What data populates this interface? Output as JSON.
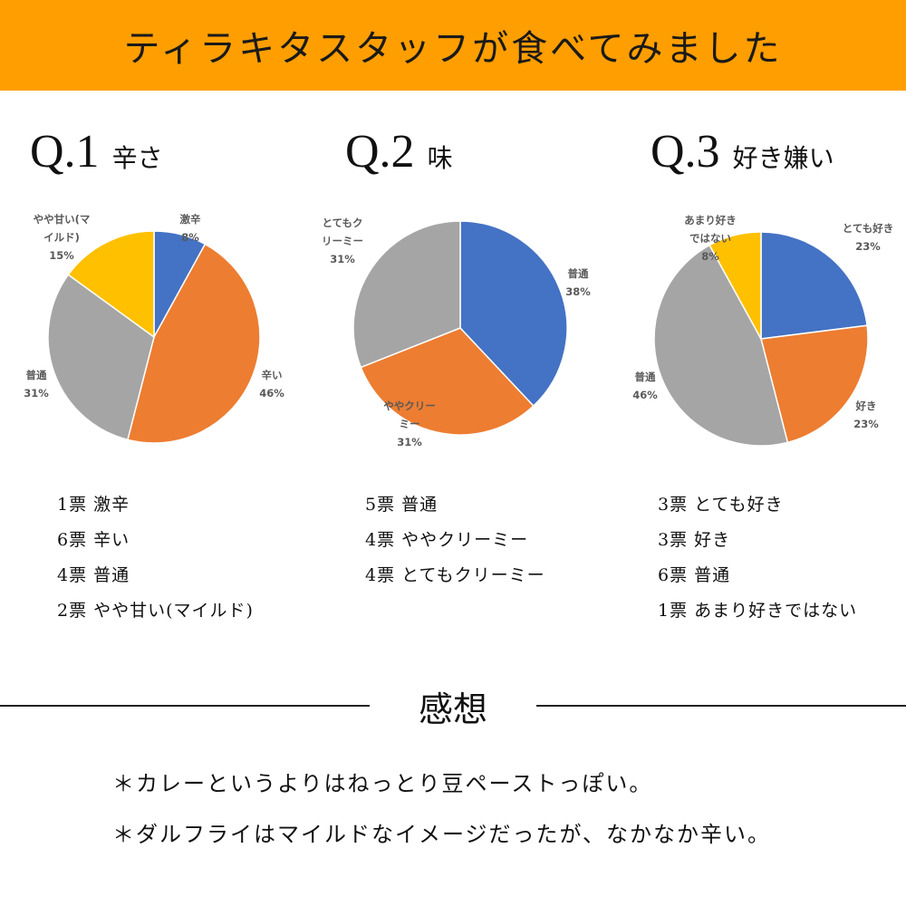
{
  "header": {
    "title": "ティラキタスタッフが食べてみました"
  },
  "questions": [
    {
      "number": "Q.1",
      "topic": "辛さ"
    },
    {
      "number": "Q.2",
      "topic": "味"
    },
    {
      "number": "Q.3",
      "topic": "好き嫌い"
    }
  ],
  "chart_data": [
    {
      "type": "pie",
      "categories": [
        "激辛",
        "辛い",
        "普通",
        "やや甘い(マイルド)"
      ],
      "values": [
        8,
        46,
        31,
        15
      ],
      "value_labels": [
        "8%",
        "46%",
        "31%",
        "15%"
      ],
      "label_lines": [
        [
          "激辛"
        ],
        [
          "辛い"
        ],
        [
          "普通"
        ],
        [
          "やや甘い(マ",
          "イルド)"
        ]
      ],
      "colors": [
        "#4472c4",
        "#ed7d31",
        "#a5a5a5",
        "#ffc000"
      ]
    },
    {
      "type": "pie",
      "categories": [
        "普通",
        "ややクリーミー",
        "とてもクリーミー"
      ],
      "values": [
        38,
        31,
        31
      ],
      "value_labels": [
        "38%",
        "31%",
        "31%"
      ],
      "label_lines": [
        [
          "普通"
        ],
        [
          "ややクリー",
          "ミー"
        ],
        [
          "とてもク",
          "リーミー"
        ]
      ],
      "colors": [
        "#4472c4",
        "#ed7d31",
        "#a5a5a5"
      ]
    },
    {
      "type": "pie",
      "categories": [
        "とても好き",
        "好き",
        "普通",
        "あまり好きではない"
      ],
      "values": [
        23,
        23,
        46,
        8
      ],
      "value_labels": [
        "23%",
        "23%",
        "46%",
        "8%"
      ],
      "label_lines": [
        [
          "とても好き"
        ],
        [
          "好き"
        ],
        [
          "普通"
        ],
        [
          "あまり好き",
          "ではない"
        ]
      ],
      "colors": [
        "#4472c4",
        "#ed7d31",
        "#a5a5a5",
        "#ffc000"
      ]
    }
  ],
  "votes": [
    [
      "1票 激辛",
      "6票 辛い",
      "4票 普通",
      "2票 やや甘い(マイルド)"
    ],
    [
      "5票 普通",
      "4票 ややクリーミー",
      "4票 とてもクリーミー"
    ],
    [
      "3票 とても好き",
      "3票 好き",
      "6票 普通",
      "1票 あまり好きではない"
    ]
  ],
  "impressions": {
    "heading": "感想",
    "comments": [
      "＊カレーというよりはねっとり豆ペーストっぽい。",
      "＊ダルフライはマイルドなイメージだったが、なかなか辛い。"
    ]
  }
}
